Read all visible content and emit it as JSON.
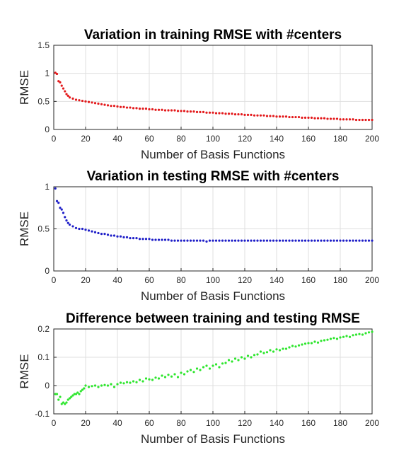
{
  "chart_data": [
    {
      "type": "scatter",
      "title": "Variation in training RMSE with #centers",
      "xlabel": "Number of Basis Functions",
      "ylabel": "RMSE",
      "xlim": [
        0,
        200
      ],
      "ylim": [
        0,
        1.5
      ],
      "xticks": [
        "0",
        "20",
        "40",
        "60",
        "80",
        "100",
        "120",
        "140",
        "160",
        "180",
        "200"
      ],
      "yticks": [
        "0",
        "0.5",
        "1",
        "1.5"
      ],
      "ytick_values": [
        0,
        0.5,
        1,
        1.5
      ],
      "grid": true,
      "color": "#e31a1c",
      "x": [
        1,
        2,
        3,
        4,
        5,
        6,
        7,
        8,
        9,
        10,
        12,
        14,
        16,
        18,
        20,
        22,
        24,
        26,
        28,
        30,
        32,
        34,
        36,
        38,
        40,
        42,
        44,
        46,
        48,
        50,
        52,
        54,
        56,
        58,
        60,
        62,
        64,
        66,
        68,
        70,
        72,
        74,
        76,
        78,
        80,
        82,
        84,
        86,
        88,
        90,
        92,
        94,
        96,
        98,
        100,
        102,
        104,
        106,
        108,
        110,
        112,
        114,
        116,
        118,
        120,
        122,
        124,
        126,
        128,
        130,
        132,
        134,
        136,
        138,
        140,
        142,
        144,
        146,
        148,
        150,
        152,
        154,
        156,
        158,
        160,
        162,
        164,
        166,
        168,
        170,
        172,
        174,
        176,
        178,
        180,
        182,
        184,
        186,
        188,
        190,
        192,
        194,
        196,
        198,
        200
      ],
      "y": [
        1.01,
        0.99,
        0.86,
        0.84,
        0.78,
        0.73,
        0.68,
        0.63,
        0.6,
        0.57,
        0.55,
        0.53,
        0.52,
        0.51,
        0.5,
        0.49,
        0.48,
        0.47,
        0.46,
        0.45,
        0.44,
        0.43,
        0.42,
        0.42,
        0.41,
        0.4,
        0.4,
        0.39,
        0.39,
        0.38,
        0.38,
        0.37,
        0.37,
        0.37,
        0.36,
        0.36,
        0.35,
        0.35,
        0.35,
        0.34,
        0.34,
        0.34,
        0.34,
        0.33,
        0.33,
        0.33,
        0.32,
        0.32,
        0.32,
        0.31,
        0.31,
        0.31,
        0.3,
        0.3,
        0.3,
        0.29,
        0.29,
        0.29,
        0.28,
        0.28,
        0.28,
        0.27,
        0.27,
        0.27,
        0.26,
        0.26,
        0.26,
        0.25,
        0.25,
        0.25,
        0.25,
        0.24,
        0.24,
        0.24,
        0.23,
        0.23,
        0.23,
        0.23,
        0.22,
        0.22,
        0.22,
        0.22,
        0.21,
        0.21,
        0.21,
        0.21,
        0.2,
        0.2,
        0.2,
        0.2,
        0.19,
        0.19,
        0.19,
        0.19,
        0.18,
        0.18,
        0.18,
        0.18,
        0.18,
        0.17,
        0.17,
        0.17,
        0.17,
        0.17,
        0.17
      ]
    },
    {
      "type": "scatter",
      "title": "Variation in testing RMSE with #centers",
      "xlabel": "Number of Basis Functions",
      "ylabel": "RMSE",
      "xlim": [
        0,
        200
      ],
      "ylim": [
        0,
        1
      ],
      "xticks": [
        "0",
        "20",
        "40",
        "60",
        "80",
        "100",
        "120",
        "140",
        "160",
        "180",
        "200"
      ],
      "yticks": [
        "0",
        "0.5",
        "1"
      ],
      "ytick_values": [
        0,
        0.5,
        1
      ],
      "grid": true,
      "color": "#1f1fc8",
      "x": [
        1,
        2,
        3,
        4,
        5,
        6,
        7,
        8,
        9,
        10,
        12,
        14,
        16,
        18,
        20,
        22,
        24,
        26,
        28,
        30,
        32,
        34,
        36,
        38,
        40,
        42,
        44,
        46,
        48,
        50,
        52,
        54,
        56,
        58,
        60,
        62,
        64,
        66,
        68,
        70,
        72,
        74,
        76,
        78,
        80,
        82,
        84,
        86,
        88,
        90,
        92,
        94,
        96,
        98,
        100,
        102,
        104,
        106,
        108,
        110,
        112,
        114,
        116,
        118,
        120,
        122,
        124,
        126,
        128,
        130,
        132,
        134,
        136,
        138,
        140,
        142,
        144,
        146,
        148,
        150,
        152,
        154,
        156,
        158,
        160,
        162,
        164,
        166,
        168,
        170,
        172,
        174,
        176,
        178,
        180,
        182,
        184,
        186,
        188,
        190,
        192,
        194,
        196,
        198,
        200
      ],
      "y": [
        0.98,
        0.83,
        0.81,
        0.75,
        0.73,
        0.69,
        0.64,
        0.6,
        0.57,
        0.55,
        0.53,
        0.51,
        0.5,
        0.5,
        0.49,
        0.48,
        0.47,
        0.46,
        0.45,
        0.44,
        0.44,
        0.43,
        0.42,
        0.42,
        0.41,
        0.41,
        0.4,
        0.4,
        0.39,
        0.39,
        0.39,
        0.38,
        0.38,
        0.38,
        0.38,
        0.37,
        0.37,
        0.37,
        0.37,
        0.37,
        0.37,
        0.36,
        0.36,
        0.36,
        0.36,
        0.36,
        0.36,
        0.36,
        0.36,
        0.36,
        0.36,
        0.36,
        0.35,
        0.36,
        0.36,
        0.36,
        0.36,
        0.36,
        0.36,
        0.36,
        0.36,
        0.36,
        0.36,
        0.36,
        0.36,
        0.36,
        0.36,
        0.36,
        0.36,
        0.36,
        0.36,
        0.36,
        0.36,
        0.36,
        0.36,
        0.36,
        0.36,
        0.36,
        0.36,
        0.36,
        0.36,
        0.36,
        0.36,
        0.36,
        0.36,
        0.36,
        0.36,
        0.36,
        0.36,
        0.36,
        0.36,
        0.36,
        0.36,
        0.36,
        0.36,
        0.36,
        0.36,
        0.36,
        0.36,
        0.36,
        0.36,
        0.36,
        0.36,
        0.36,
        0.36
      ]
    },
    {
      "type": "scatter",
      "title": "Difference between training and testing RMSE",
      "xlabel": "Number of Basis Functions",
      "ylabel": "RMSE",
      "xlim": [
        0,
        200
      ],
      "ylim": [
        -0.1,
        0.2
      ],
      "xticks": [
        "0",
        "20",
        "40",
        "60",
        "80",
        "100",
        "120",
        "140",
        "160",
        "180",
        "200"
      ],
      "yticks": [
        "-0.1",
        "0",
        "0.1",
        "0.2"
      ],
      "ytick_values": [
        -0.1,
        0,
        0.1,
        0.2
      ],
      "grid": true,
      "color": "#2ee62e",
      "x": [
        1,
        2,
        3,
        4,
        5,
        6,
        7,
        8,
        9,
        10,
        11,
        12,
        13,
        14,
        15,
        16,
        17,
        18,
        19,
        20,
        22,
        24,
        26,
        28,
        30,
        32,
        34,
        36,
        38,
        40,
        42,
        44,
        46,
        48,
        50,
        52,
        54,
        56,
        58,
        60,
        62,
        64,
        66,
        68,
        70,
        72,
        74,
        76,
        78,
        80,
        82,
        84,
        86,
        88,
        90,
        92,
        94,
        96,
        98,
        100,
        102,
        104,
        106,
        108,
        110,
        112,
        114,
        116,
        118,
        120,
        122,
        124,
        126,
        128,
        130,
        132,
        134,
        136,
        138,
        140,
        142,
        144,
        146,
        148,
        150,
        152,
        154,
        156,
        158,
        160,
        162,
        164,
        166,
        168,
        170,
        172,
        174,
        176,
        178,
        180,
        182,
        184,
        186,
        188,
        190,
        192,
        194,
        196,
        198,
        200
      ],
      "y": [
        -0.03,
        -0.03,
        -0.05,
        -0.04,
        -0.065,
        -0.06,
        -0.065,
        -0.06,
        -0.05,
        -0.045,
        -0.04,
        -0.035,
        -0.03,
        -0.03,
        -0.025,
        -0.03,
        -0.02,
        -0.015,
        -0.01,
        0.0,
        -0.005,
        -0.002,
        0.0,
        -0.005,
        0.0,
        0.002,
        0.0,
        0.005,
        -0.005,
        0.005,
        0.01,
        0.008,
        0.012,
        0.01,
        0.015,
        0.012,
        0.02,
        0.015,
        0.025,
        0.022,
        0.02,
        0.028,
        0.025,
        0.035,
        0.03,
        0.038,
        0.032,
        0.04,
        0.03,
        0.045,
        0.04,
        0.05,
        0.055,
        0.048,
        0.06,
        0.055,
        0.065,
        0.07,
        0.06,
        0.07,
        0.075,
        0.065,
        0.078,
        0.08,
        0.09,
        0.085,
        0.095,
        0.09,
        0.1,
        0.095,
        0.105,
        0.1,
        0.108,
        0.11,
        0.12,
        0.115,
        0.118,
        0.125,
        0.12,
        0.128,
        0.125,
        0.13,
        0.13,
        0.135,
        0.14,
        0.138,
        0.142,
        0.145,
        0.148,
        0.15,
        0.15,
        0.155,
        0.152,
        0.158,
        0.16,
        0.162,
        0.165,
        0.168,
        0.165,
        0.17,
        0.172,
        0.175,
        0.172,
        0.178,
        0.18,
        0.182,
        0.18,
        0.185,
        0.188,
        0.19
      ]
    }
  ]
}
